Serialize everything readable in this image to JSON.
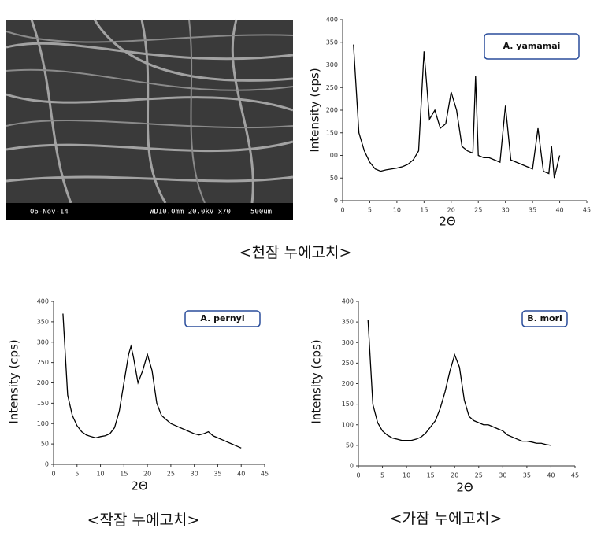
{
  "sem_image": {
    "date": "06-Nov-14",
    "params": "WD10.0mm 20.0kV x70",
    "scale": "500um"
  },
  "captions": [
    "<천잠 누에고치>",
    "<작잠 누에고치>",
    "<가잠 누에고치>"
  ],
  "chart_data": [
    {
      "type": "line",
      "xlabel": "2Θ",
      "ylabel": "Intensity (cps)",
      "xlim": [
        0,
        45
      ],
      "ylim": [
        0,
        400
      ],
      "xticks": [
        0,
        5,
        10,
        15,
        20,
        25,
        30,
        35,
        40,
        45
      ],
      "yticks": [
        0,
        50,
        100,
        150,
        200,
        250,
        300,
        350,
        400
      ],
      "x": [
        2,
        3,
        4,
        5,
        6,
        7,
        8,
        9,
        10,
        11,
        12,
        13,
        14,
        15,
        16,
        17,
        18,
        19,
        20,
        21,
        22,
        23,
        24,
        24.5,
        25,
        26,
        27,
        28,
        29,
        30,
        31,
        32,
        33,
        34,
        35,
        36,
        37,
        38,
        38.5,
        39,
        40
      ],
      "series": [
        {
          "name": "A. yamamai",
          "color": "#000000",
          "values": [
            345,
            150,
            110,
            85,
            70,
            65,
            68,
            70,
            72,
            75,
            80,
            90,
            110,
            330,
            180,
            200,
            160,
            170,
            240,
            200,
            120,
            110,
            105,
            275,
            100,
            95,
            95,
            90,
            85,
            210,
            90,
            85,
            80,
            75,
            70,
            160,
            65,
            60,
            120,
            50,
            100
          ]
        }
      ]
    },
    {
      "type": "line",
      "xlabel": "2Θ",
      "ylabel": "Intensity (cps)",
      "xlim": [
        0,
        45
      ],
      "ylim": [
        0,
        400
      ],
      "xticks": [
        0,
        5,
        10,
        15,
        20,
        25,
        30,
        35,
        40,
        45
      ],
      "yticks": [
        0,
        50,
        100,
        150,
        200,
        250,
        300,
        350,
        400
      ],
      "x": [
        2,
        3,
        4,
        5,
        6,
        7,
        8,
        9,
        10,
        11,
        12,
        13,
        14,
        15,
        16,
        16.5,
        17,
        18,
        19,
        20,
        21,
        22,
        23,
        24,
        25,
        26,
        27,
        28,
        29,
        30,
        31,
        32,
        33,
        34,
        35,
        36,
        37,
        38,
        39,
        40
      ],
      "series": [
        {
          "name": "A. pernyi",
          "color": "#000000",
          "values": [
            370,
            170,
            120,
            95,
            80,
            72,
            68,
            65,
            68,
            70,
            75,
            90,
            130,
            200,
            270,
            290,
            265,
            200,
            230,
            270,
            230,
            150,
            120,
            110,
            100,
            95,
            90,
            85,
            80,
            75,
            72,
            75,
            80,
            70,
            65,
            60,
            55,
            50,
            45,
            40
          ]
        }
      ]
    },
    {
      "type": "line",
      "xlabel": "2Θ",
      "ylabel": "Intensity (cps)",
      "xlim": [
        0,
        45
      ],
      "ylim": [
        0,
        400
      ],
      "xticks": [
        0,
        5,
        10,
        15,
        20,
        25,
        30,
        35,
        40,
        45
      ],
      "yticks": [
        0,
        50,
        100,
        150,
        200,
        250,
        300,
        350,
        400
      ],
      "x": [
        2,
        3,
        4,
        5,
        6,
        7,
        8,
        9,
        10,
        11,
        12,
        13,
        14,
        15,
        16,
        17,
        18,
        19,
        20,
        21,
        22,
        23,
        24,
        25,
        26,
        27,
        28,
        29,
        30,
        31,
        32,
        33,
        34,
        35,
        36,
        37,
        38,
        39,
        40
      ],
      "series": [
        {
          "name": "B. mori",
          "color": "#000000",
          "values": [
            355,
            150,
            105,
            85,
            75,
            68,
            65,
            62,
            62,
            62,
            65,
            70,
            80,
            95,
            110,
            140,
            180,
            230,
            270,
            240,
            160,
            120,
            110,
            105,
            100,
            100,
            95,
            90,
            85,
            75,
            70,
            65,
            60,
            60,
            58,
            55,
            55,
            52,
            50
          ]
        }
      ]
    }
  ]
}
